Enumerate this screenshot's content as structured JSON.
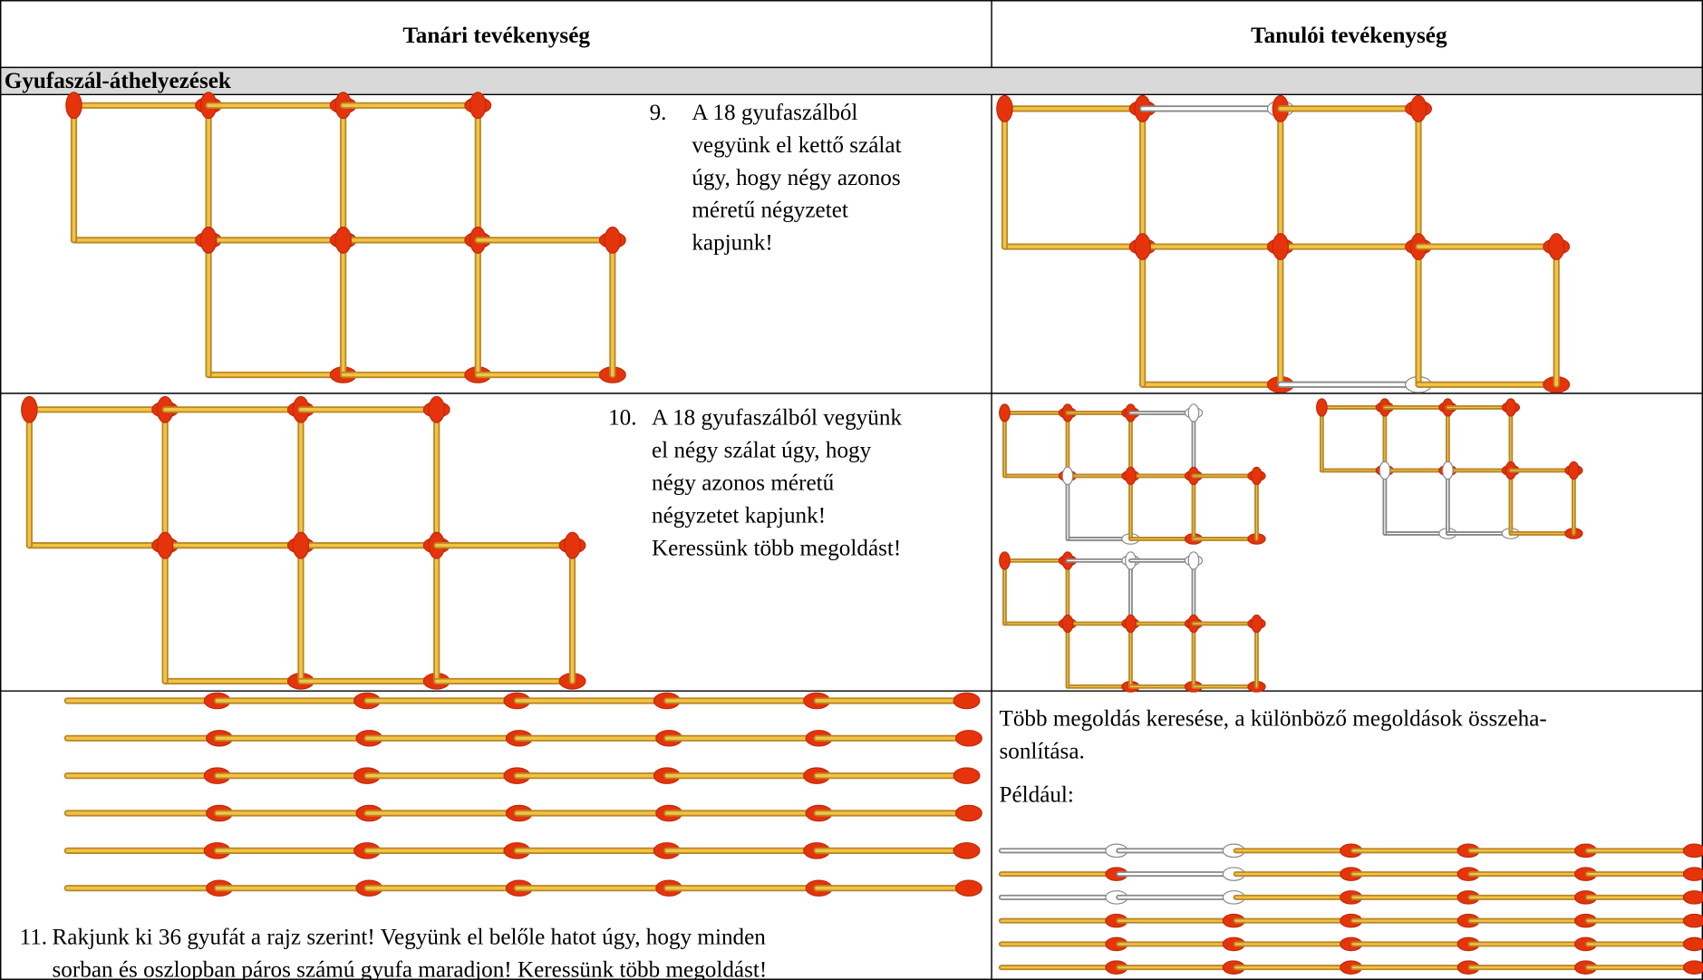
{
  "header": {
    "left": "Tanári tevékenység",
    "right": "Tanulói tevékenység"
  },
  "section": "Gyufaszál-áthelyezések",
  "rows": [
    {
      "number": "9.",
      "lines": [
        "A 18 gyufaszálból",
        "vegyünk el kettő szálat",
        "úgy, hogy négy azonos",
        "méretű négyzetet",
        "kapjunk!"
      ]
    },
    {
      "number": "10.",
      "lines": [
        "A 18 gyufaszálból vegyünk",
        "el négy szálat úgy, hogy",
        "négy azonos méretű",
        "négyzetet kapjunk!",
        "Keressünk több megoldást!"
      ]
    },
    {
      "number": "11.",
      "lines": [
        "Rakjunk ki 36 gyufát a rajz szerint! Vegyünk el belőle hatot úgy, hogy minden",
        "sorban és oszlopban páros számú gyufa maradjon! Keressünk több megoldást!"
      ],
      "solution": [
        "Több megoldás keresése, a különböző megoldások összeha-",
        "sonlítása.",
        "Például:"
      ]
    }
  ]
}
